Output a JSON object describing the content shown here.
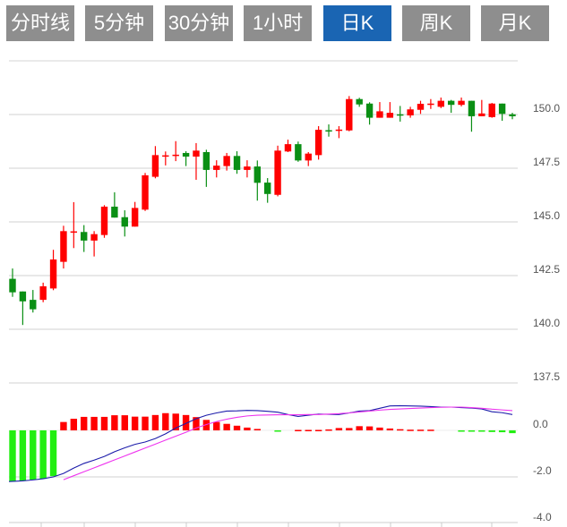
{
  "tabs": [
    {
      "label": "分时线",
      "active": false
    },
    {
      "label": "5分钟",
      "active": false
    },
    {
      "label": "30分钟",
      "active": false
    },
    {
      "label": "1小时",
      "active": false
    },
    {
      "label": "日K",
      "active": true
    },
    {
      "label": "周K",
      "active": false
    },
    {
      "label": "月K",
      "active": false
    }
  ],
  "colors": {
    "up": "#ff0000",
    "down": "#0a8f14",
    "macd_neg": "#22ee11",
    "dif": "#1c1caa",
    "dea": "#ee33ee",
    "tab": "#8e8e8e",
    "tab_active": "#1a65b3"
  },
  "chart_data": [
    {
      "type": "candlestick",
      "ylim": [
        137.5,
        152.5
      ],
      "y_ticks": [
        "150.0",
        "147.5",
        "145.0",
        "142.5",
        "140.0",
        "137.5"
      ],
      "grid": true,
      "ohlc": [
        [
          142.35,
          142.83,
          141.51,
          141.72
        ],
        [
          141.76,
          141.76,
          140.2,
          141.3
        ],
        [
          141.37,
          141.83,
          140.78,
          140.93
        ],
        [
          141.37,
          142.17,
          141.26,
          142.0
        ],
        [
          141.9,
          143.7,
          141.82,
          143.25
        ],
        [
          143.14,
          144.82,
          142.83,
          144.57
        ],
        [
          144.5,
          145.92,
          143.78,
          144.56
        ],
        [
          144.53,
          144.85,
          143.6,
          144.13
        ],
        [
          144.13,
          144.57,
          143.39,
          144.43
        ],
        [
          144.39,
          145.78,
          144.26,
          145.71
        ],
        [
          145.71,
          146.38,
          145.2,
          145.2
        ],
        [
          145.22,
          145.54,
          144.32,
          144.78
        ],
        [
          144.78,
          145.93,
          144.78,
          145.65
        ],
        [
          145.57,
          147.28,
          145.51,
          147.17
        ],
        [
          147.1,
          148.53,
          147.03,
          148.11
        ],
        [
          148.05,
          148.28,
          147.63,
          148.1
        ],
        [
          148.08,
          148.76,
          147.83,
          148.13
        ],
        [
          148.21,
          148.29,
          147.6,
          148.04
        ],
        [
          148.04,
          148.67,
          146.96,
          148.32
        ],
        [
          148.25,
          148.36,
          146.63,
          147.42
        ],
        [
          147.42,
          147.87,
          147.07,
          147.62
        ],
        [
          147.6,
          148.21,
          147.39,
          148.07
        ],
        [
          148.07,
          148.29,
          147.24,
          147.42
        ],
        [
          147.42,
          147.87,
          147.07,
          147.58
        ],
        [
          147.58,
          147.86,
          145.99,
          146.82
        ],
        [
          146.83,
          147.04,
          145.89,
          146.3
        ],
        [
          146.26,
          148.55,
          146.19,
          148.32
        ],
        [
          148.28,
          148.83,
          148.25,
          148.62
        ],
        [
          148.62,
          148.74,
          147.8,
          147.86
        ],
        [
          147.86,
          148.25,
          147.6,
          148.18
        ],
        [
          148.11,
          149.46,
          147.9,
          149.29
        ],
        [
          149.27,
          149.54,
          148.97,
          149.24
        ],
        [
          149.27,
          149.46,
          148.9,
          149.3
        ],
        [
          149.26,
          150.86,
          149.22,
          150.72
        ],
        [
          150.72,
          150.78,
          150.36,
          150.47
        ],
        [
          150.51,
          150.57,
          149.53,
          149.85
        ],
        [
          149.85,
          150.58,
          149.85,
          150.15
        ],
        [
          149.85,
          150.58,
          149.85,
          150.08
        ],
        [
          150.01,
          150.4,
          149.67,
          149.98
        ],
        [
          149.96,
          150.36,
          149.85,
          150.24
        ],
        [
          150.22,
          150.64,
          150.03,
          150.5
        ],
        [
          150.49,
          150.72,
          150.26,
          150.51
        ],
        [
          150.36,
          150.79,
          150.3,
          150.64
        ],
        [
          150.64,
          150.68,
          150.08,
          150.45
        ],
        [
          150.45,
          150.79,
          150.38,
          150.64
        ],
        [
          150.64,
          150.64,
          149.2,
          149.92
        ],
        [
          149.92,
          150.68,
          149.92,
          150.05
        ],
        [
          149.88,
          150.54,
          149.85,
          150.51
        ],
        [
          150.51,
          150.51,
          149.71,
          150.03
        ],
        [
          150.01,
          150.08,
          149.78,
          149.92
        ]
      ]
    },
    {
      "type": "bar+line",
      "ylim": [
        -4.0,
        2.0
      ],
      "y_ticks": [
        "0.0",
        "-2.0",
        "-4.0"
      ],
      "grid": true,
      "histogram": [
        -2.2,
        -2.17,
        -2.12,
        -2.08,
        -1.97,
        0.36,
        0.5,
        0.58,
        0.58,
        0.58,
        0.65,
        0.65,
        0.59,
        0.59,
        0.66,
        0.74,
        0.72,
        0.66,
        0.57,
        0.45,
        0.36,
        0.28,
        0.2,
        0.12,
        0.06,
        0,
        -0.03,
        0,
        0.02,
        0.02,
        0.02,
        0.04,
        0.1,
        0.1,
        0.18,
        0.17,
        0.12,
        0.08,
        0.05,
        0.03,
        0.03,
        0.03,
        0,
        0,
        -0.02,
        -0.02,
        -0.05,
        -0.07,
        -0.08,
        -0.12
      ],
      "dif": [
        -2.2,
        -2.17,
        -2.13,
        -2.08,
        -2.0,
        -1.85,
        -1.62,
        -1.42,
        -1.28,
        -1.12,
        -0.92,
        -0.75,
        -0.6,
        -0.5,
        -0.35,
        -0.15,
        0.1,
        0.3,
        0.5,
        0.65,
        0.75,
        0.83,
        0.84,
        0.86,
        0.85,
        0.82,
        0.78,
        0.68,
        0.6,
        0.65,
        0.7,
        0.69,
        0.68,
        0.75,
        0.83,
        0.85,
        0.95,
        1.05,
        1.06,
        1.05,
        1.04,
        1.02,
        1.0,
        1.0,
        0.98,
        0.96,
        0.92,
        0.8,
        0.76,
        0.68
      ],
      "dea": [
        null,
        null,
        null,
        null,
        null,
        -2.12,
        -1.95,
        -1.78,
        -1.61,
        -1.44,
        -1.27,
        -1.1,
        -0.93,
        -0.76,
        -0.59,
        -0.42,
        -0.25,
        -0.08,
        0.1,
        0.25,
        0.38,
        0.48,
        0.56,
        0.62,
        0.65,
        0.66,
        0.67,
        0.67,
        0.67,
        0.68,
        0.68,
        0.7,
        0.72,
        0.75,
        0.79,
        0.83,
        0.87,
        0.9,
        0.92,
        0.94,
        0.96,
        0.98,
        0.99,
        1.0,
        1.0,
        0.98,
        0.95,
        0.91,
        0.88,
        0.85
      ]
    }
  ]
}
